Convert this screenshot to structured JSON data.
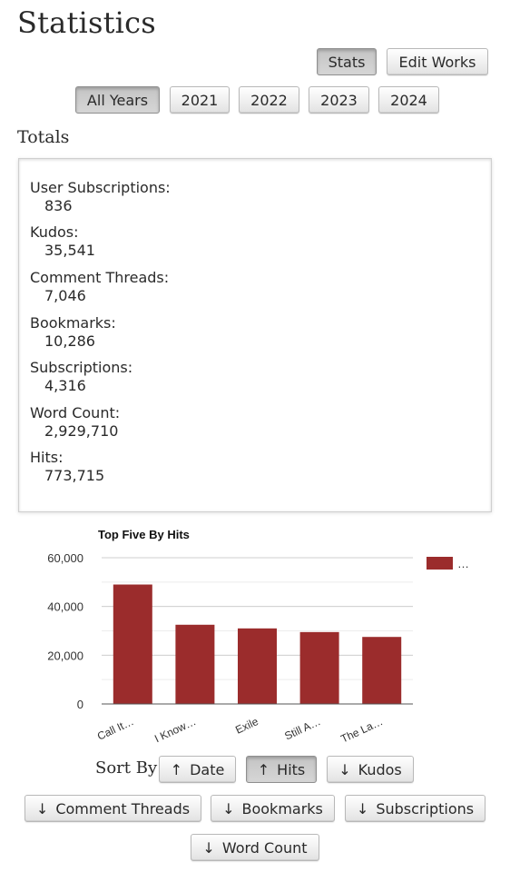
{
  "page": {
    "title": "Statistics"
  },
  "view_buttons": {
    "stats": "Stats",
    "edit_works": "Edit Works"
  },
  "years": [
    "All Years",
    "2021",
    "2022",
    "2023",
    "2024"
  ],
  "totals_heading": "Totals",
  "totals": [
    {
      "label": "User Subscriptions:",
      "value": "836"
    },
    {
      "label": "Kudos:",
      "value": "35,541"
    },
    {
      "label": "Comment Threads:",
      "value": "7,046"
    },
    {
      "label": "Bookmarks:",
      "value": "10,286"
    },
    {
      "label": "Subscriptions:",
      "value": "4,316"
    },
    {
      "label": "Word Count:",
      "value": "2,929,710"
    },
    {
      "label": "Hits:",
      "value": "773,715"
    }
  ],
  "chart_data": {
    "type": "bar",
    "title": "Top Five By Hits",
    "categories": [
      "Call It…",
      "I Know…",
      "Exile",
      "Still A…",
      "The La…"
    ],
    "values": [
      49000,
      32500,
      31000,
      29500,
      27500
    ],
    "ylim": [
      0,
      60000
    ],
    "yticks": [
      0,
      20000,
      40000,
      60000
    ],
    "ytick_labels": [
      "0",
      "20,000",
      "40,000",
      "60,000"
    ],
    "legend": {
      "label": "…",
      "position": "top-right"
    },
    "bar_color": "#9b2c2c",
    "grid": true
  },
  "sort": {
    "label": "Sort By",
    "buttons": [
      {
        "arrow": "↑",
        "label": "Date"
      },
      {
        "arrow": "↑",
        "label": "Hits"
      },
      {
        "arrow": "↓",
        "label": "Kudos"
      },
      {
        "arrow": "↓",
        "label": "Comment Threads"
      },
      {
        "arrow": "↓",
        "label": "Bookmarks"
      },
      {
        "arrow": "↓",
        "label": "Subscriptions"
      },
      {
        "arrow": "↓",
        "label": "Word Count"
      }
    ]
  }
}
